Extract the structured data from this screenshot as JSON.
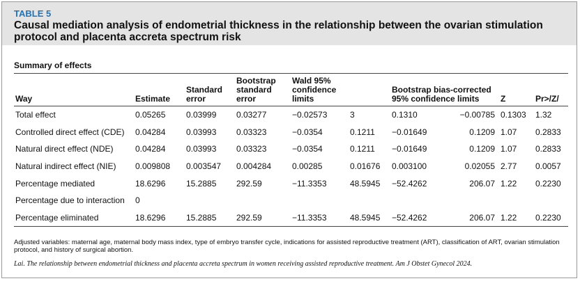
{
  "header": {
    "label": "TABLE 5",
    "title": "Causal mediation analysis of endometrial thickness in the relationship between the ovarian stimulation protocol and placenta accreta spectrum risk"
  },
  "section": "Summary of effects",
  "table": {
    "columns": [
      "Way",
      "Estimate",
      "Standard error",
      "Bootstrap standard error",
      "Wald 95% confidence limits",
      "Bootstrap bias-corrected 95% confidence limits",
      "Z",
      "Pr>/Z/"
    ],
    "rows": [
      [
        "Total effect",
        "0.05265",
        "0.03999",
        "0.03277",
        "−0.02573",
        "3",
        "0.1310",
        "−0.00785",
        "0.1303",
        "1.32"
      ],
      [
        "Controlled direct effect (CDE)",
        "0.04284",
        "0.03993",
        "0.03323",
        "−0.0354",
        "0.1211",
        "−0.01649",
        "0.1209",
        "1.07",
        "0.2833"
      ],
      [
        "Natural direct effect (NDE)",
        "0.04284",
        "0.03993",
        "0.03323",
        "−0.0354",
        "0.1211",
        "−0.01649",
        "0.1209",
        "1.07",
        "0.2833"
      ],
      [
        "Natural indirect effect (NIE)",
        "0.009808",
        "0.003547",
        "0.004284",
        "0.00285",
        "0.01676",
        "0.003100",
        "0.02055",
        "2.77",
        "0.0057"
      ],
      [
        "Percentage mediated",
        "18.6296",
        "15.2885",
        "292.59",
        "−11.3353",
        "48.5945",
        "−52.4262",
        "206.07",
        "1.22",
        "0.2230"
      ],
      [
        "Percentage due to interaction",
        "0"
      ],
      [
        "Percentage eliminated",
        "18.6296",
        "15.2885",
        "292.59",
        "−11.3353",
        "48.5945",
        "−52.4262",
        "206.07",
        "1.22",
        "0.2230"
      ]
    ]
  },
  "footnote": "Adjusted variables: maternal age, maternal body mass index, type of embryo transfer cycle, indications for assisted reproductive treatment (ART), classification of ART, ovarian stimulation protocol, and history of surgical abortion.",
  "citation": "Lai. The relationship between endometrial thickness and placenta accreta spectrum in women receiving assisted reproductive treatment. Am J Obstet Gynecol 2024."
}
